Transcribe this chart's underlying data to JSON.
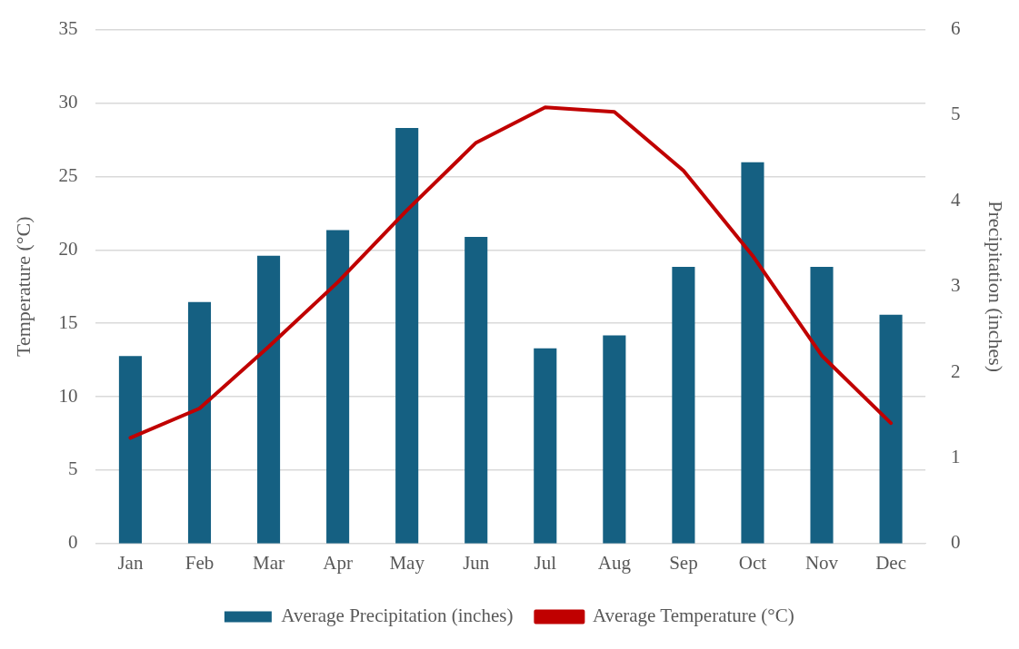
{
  "chart_data": {
    "type": "bar",
    "categories": [
      "Jan",
      "Feb",
      "Mar",
      "Apr",
      "May",
      "Jun",
      "Jul",
      "Aug",
      "Sep",
      "Oct",
      "Nov",
      "Dec"
    ],
    "series": [
      {
        "name": "Average Precipitation (inches)",
        "axis": "y2",
        "color": "#156082",
        "values": [
          2.19,
          2.82,
          3.36,
          3.66,
          4.85,
          3.58,
          2.28,
          2.43,
          3.23,
          4.45,
          3.23,
          2.67
        ]
      },
      {
        "name": "Average Temperature (°C)",
        "type": "line",
        "color": "#c00000",
        "values": [
          7.2,
          9.2,
          13.4,
          17.8,
          22.7,
          27.3,
          29.7,
          29.4,
          25.4,
          19.6,
          12.8,
          8.2
        ]
      }
    ],
    "ylabel": "Temperature (°C)",
    "y2label": "Precipitation (inches)",
    "ylim": [
      0,
      35
    ],
    "yticks": [
      0,
      5,
      10,
      15,
      20,
      25,
      30,
      35
    ],
    "y2lim": [
      0,
      6
    ],
    "y2ticks": [
      0,
      1,
      2,
      3,
      4,
      5,
      6
    ],
    "grid": "y",
    "legend": "bottom",
    "marker": "none"
  }
}
